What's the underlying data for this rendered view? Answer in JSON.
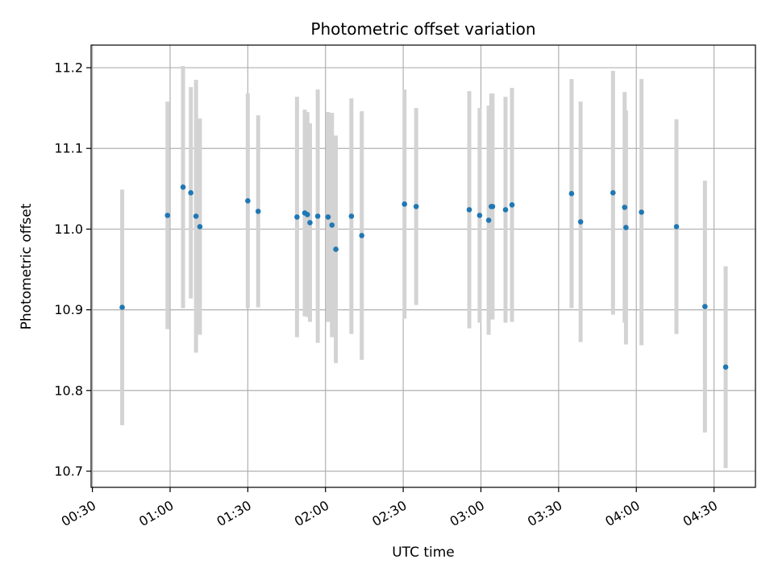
{
  "chart_data": {
    "type": "scatter",
    "title": "Photometric offset variation",
    "xlabel": "UTC time",
    "ylabel": "Photometric offset",
    "x_ticks": [
      "00:30",
      "01:00",
      "01:30",
      "02:00",
      "02:30",
      "03:00",
      "03:30",
      "04:00",
      "04:30"
    ],
    "y_ticks": [
      "10.7",
      "10.8",
      "10.9",
      "11.0",
      "11.1",
      "11.2"
    ],
    "xlim": [
      "00:29:30",
      "04:46:00"
    ],
    "ylim": [
      10.68,
      11.228
    ],
    "grid": true,
    "colors": {
      "points": "#1f77b4",
      "errorbars": "#d3d3d3",
      "grid": "#b0b0b0"
    },
    "series": [
      {
        "x": [
          "00:41:30",
          "00:59:00",
          "01:05:00",
          "01:08:00",
          "01:10:00",
          "01:11:30",
          "01:30:00",
          "01:34:00",
          "01:49:00",
          "01:52:00",
          "01:53:00",
          "01:54:00",
          "01:57:00",
          "02:01:00",
          "02:02:30",
          "02:04:00",
          "02:10:00",
          "02:14:00",
          "02:30:30",
          "02:35:00",
          "02:55:30",
          "02:59:30",
          "03:03:00",
          "03:04:00",
          "03:04:30",
          "03:09:30",
          "03:12:00",
          "03:35:00",
          "03:38:30",
          "03:51:00",
          "03:55:30",
          "03:56:00",
          "04:02:00",
          "04:15:30",
          "04:26:30",
          "04:34:30"
        ],
        "y": [
          10.903,
          11.017,
          11.052,
          11.045,
          11.016,
          11.003,
          11.035,
          11.022,
          11.015,
          11.02,
          11.018,
          11.008,
          11.016,
          11.015,
          11.005,
          10.975,
          11.016,
          10.992,
          11.031,
          11.028,
          11.024,
          11.017,
          11.011,
          11.028,
          11.028,
          11.024,
          11.03,
          11.044,
          11.009,
          11.045,
          11.027,
          11.002,
          11.021,
          11.003,
          10.904,
          10.829
        ],
        "yerr": [
          0.146,
          0.141,
          0.15,
          0.131,
          0.169,
          0.134,
          0.133,
          0.119,
          0.149,
          0.128,
          0.127,
          0.123,
          0.157,
          0.13,
          0.139,
          0.141,
          0.146,
          0.154,
          0.142,
          0.122,
          0.147,
          0.133,
          0.142,
          0.14,
          0.14,
          0.14,
          0.145,
          0.142,
          0.149,
          0.151,
          0.143,
          0.145,
          0.165,
          0.133,
          0.156,
          0.125
        ]
      }
    ]
  }
}
